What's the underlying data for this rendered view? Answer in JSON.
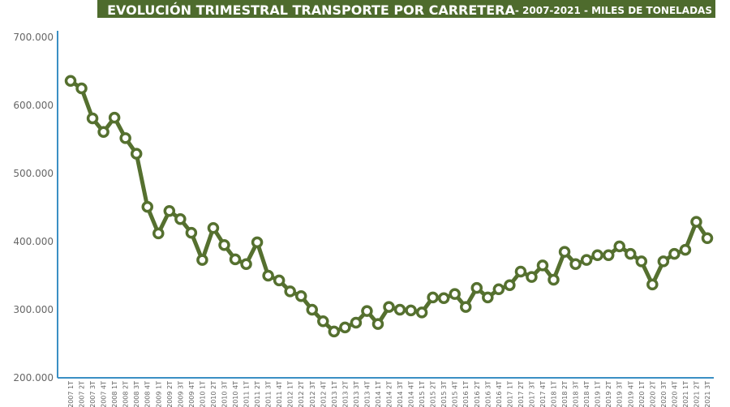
{
  "chart_data": {
    "type": "line",
    "title": "EVOLUCIÓN TRIMESTRAL TRANSPORTE POR CARRETERA",
    "subtitle": " - 2007-2021 - MILES DE TONELADAS",
    "categories": [
      "2007 1T",
      "2007 2T",
      "2007 3T",
      "2007 4T",
      "2008 1T",
      "2008 2T",
      "2008 3T",
      "2008 4T",
      "2009 1T",
      "2009 2T",
      "2009 3T",
      "2009 4T",
      "2010 1T",
      "2010 2T",
      "2010 3T",
      "2010 4T",
      "2011 1T",
      "2011 2T",
      "2011 3T",
      "2011 4T",
      "2012 1T",
      "2012 2T",
      "2012 3T",
      "2012 4T",
      "2013 1T",
      "2013 2T",
      "2013 3T",
      "2013 4T",
      "2014 1T",
      "2014 2T",
      "2014 3T",
      "2014 4T",
      "2015 1T",
      "2015 2T",
      "2015 3T",
      "2015 4T",
      "2016 1T",
      "2016 2T",
      "2016 3T",
      "2016 4T",
      "2017 1T",
      "2017 2T",
      "2017 3T",
      "2017 4T",
      "2018 1T",
      "2018 2T",
      "2018 3T",
      "2018 4T",
      "2019 1T",
      "2019 2T",
      "2019 3T",
      "2019 4T",
      "2020 1T",
      "2020 2T",
      "2020 3T",
      "2020 4T",
      "2021 1T",
      "2021 2T",
      "2021 3T"
    ],
    "values": [
      636000,
      625000,
      581000,
      561000,
      582000,
      552000,
      529000,
      451000,
      412000,
      445000,
      433000,
      413000,
      373000,
      420000,
      395000,
      374000,
      367000,
      399000,
      350000,
      343000,
      327000,
      320000,
      300000,
      283000,
      268000,
      274000,
      281000,
      298000,
      279000,
      304000,
      300000,
      299000,
      296000,
      318000,
      317000,
      323000,
      304000,
      332000,
      318000,
      330000,
      336000,
      356000,
      348000,
      365000,
      344000,
      385000,
      367000,
      373000,
      380000,
      380000,
      393000,
      382000,
      371000,
      337000,
      371000,
      382000,
      388000,
      429000,
      405000
    ],
    "color": "#55702f",
    "ylim": [
      200000,
      700000
    ],
    "yticks": [
      {
        "value": 200000,
        "label": "200.000"
      },
      {
        "value": 300000,
        "label": "300.000"
      },
      {
        "value": 400000,
        "label": "400.000"
      },
      {
        "value": 500000,
        "label": "500.000"
      },
      {
        "value": 600000,
        "label": "600.000"
      },
      {
        "value": 700000,
        "label": "700.000"
      }
    ],
    "grid": false
  }
}
